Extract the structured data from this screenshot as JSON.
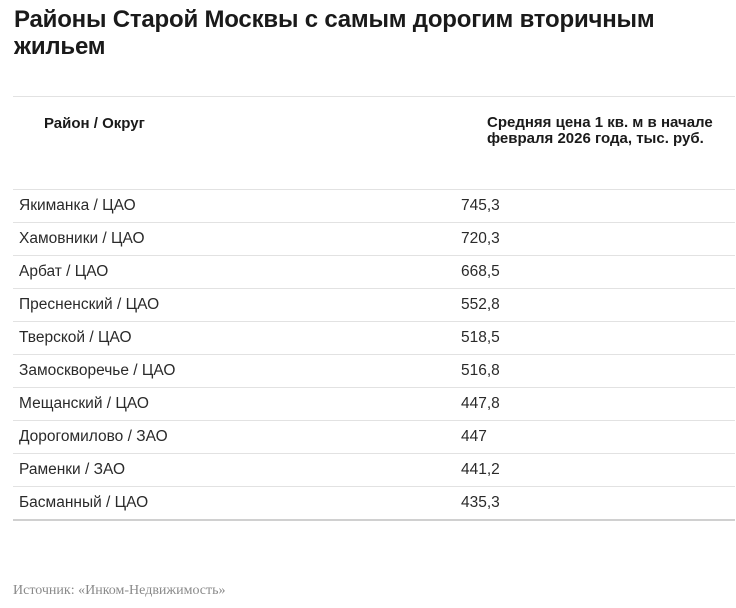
{
  "title": "Районы Старой Москвы с самым дорогим вторичным жильем",
  "table": {
    "header": {
      "district": "Район / Округ",
      "price": "Средняя цена 1 кв. м в начале февраля 2026 года, тыс. руб."
    },
    "rows": [
      {
        "district": "Якиманка / ЦАО",
        "price": "745,3"
      },
      {
        "district": "Хамовники / ЦАО",
        "price": "720,3"
      },
      {
        "district": "Арбат / ЦАО",
        "price": "668,5"
      },
      {
        "district": "Пресненский / ЦАО",
        "price": "552,8"
      },
      {
        "district": "Тверской / ЦАО",
        "price": "518,5"
      },
      {
        "district": "Замоскворечье / ЦАО",
        "price": "516,8"
      },
      {
        "district": "Мещанский / ЦАО",
        "price": "447,8"
      },
      {
        "district": "Дорогомилово / ЗАО",
        "price": "447"
      },
      {
        "district": "Раменки / ЗАО",
        "price": "441,2"
      },
      {
        "district": "Басманный / ЦАО",
        "price": "435,3"
      }
    ]
  },
  "source": "Источник: «Инком-Недвижимость»"
}
